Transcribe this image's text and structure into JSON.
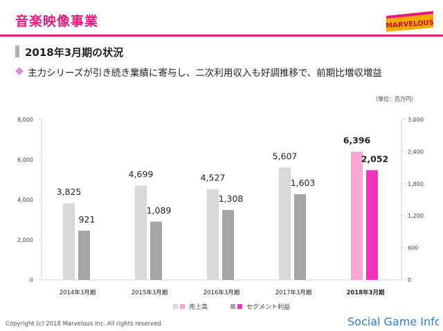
{
  "header": {
    "title": "音楽映像事業",
    "logo_text": "MARVELOUS"
  },
  "section": {
    "title": "2018年3月期の状況",
    "bullet": "主力シリーズが引き続き業績に寄与し、二次利用収入も好調推移で、前期比増収増益"
  },
  "unit_label": "（単位：百万円）",
  "colors": {
    "accent": "#e8197d",
    "sales_past": "#d9d9d9",
    "profit_past": "#a6a6a6",
    "sales_current": "#f7a6cf",
    "profit_current": "#f033b8"
  },
  "chart_data": {
    "type": "bar",
    "categories": [
      "2014年3月期",
      "2015年3月期",
      "2016年3月期",
      "2017年3月期",
      "2018年3月期"
    ],
    "highlight_index": 4,
    "series": [
      {
        "name": "売上高",
        "axis": "left",
        "values": [
          3825,
          4699,
          4527,
          5607,
          6396
        ],
        "labels": [
          "3,825",
          "4,699",
          "4,527",
          "5,607",
          "6,396"
        ]
      },
      {
        "name": "セグメント利益",
        "axis": "right",
        "values": [
          921,
          1089,
          1308,
          1603,
          2052
        ],
        "labels": [
          "921",
          "1,089",
          "1,308",
          "1,603",
          "2,052"
        ]
      }
    ],
    "y_left": {
      "lim": [
        0,
        8000
      ],
      "ticks": [
        "0",
        "2,000",
        "4,000",
        "6,000",
        "8,000"
      ]
    },
    "y_right": {
      "lim": [
        0,
        3000
      ],
      "ticks": [
        "0",
        "600",
        "1,200",
        "1,800",
        "2,400",
        "3,000"
      ]
    },
    "legend": "bottom"
  },
  "footer": {
    "copyright": "Copyright (c) 2018 Marvelous Inc. All rights reserved.",
    "watermark": "Social Game Info."
  }
}
